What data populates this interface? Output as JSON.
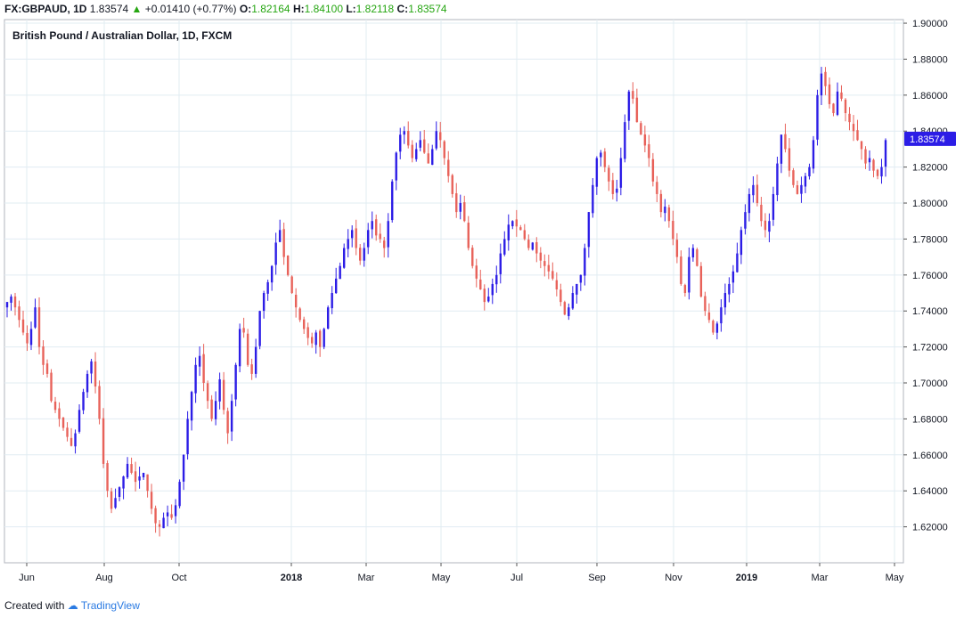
{
  "header": {
    "symbol": "FX:GBPAUD, 1D",
    "last": "1.83574",
    "arrow": "▲",
    "change": "+0.01410 (+0.77%)",
    "o_label": "O:",
    "o_value": "1.82164",
    "h_label": "H:",
    "h_value": "1.84100",
    "l_label": "L:",
    "l_value": "1.82118",
    "c_label": "C:",
    "c_value": "1.83574"
  },
  "footer": {
    "created_with": "Created with",
    "brand": "TradingView"
  },
  "colors": {
    "up": "#2c1de6",
    "down": "#e8625a",
    "grid": "#e1ecf2",
    "axis": "#555555",
    "price_tag": "#2c1de6"
  },
  "chart_data": {
    "type": "candlestick",
    "title": "British Pound / Australian Dollar, 1D, FXCM",
    "last_price_label": "1.83574",
    "y_ticks": [
      "1.90000",
      "1.88000",
      "1.86000",
      "1.84000",
      "1.82000",
      "1.80000",
      "1.78000",
      "1.76000",
      "1.74000",
      "1.72000",
      "1.70000",
      "1.68000",
      "1.66000",
      "1.64000",
      "1.62000"
    ],
    "ylim": [
      1.6,
      1.902
    ],
    "x_ticks": [
      "Jun",
      "Aug",
      "Oct",
      "2018",
      "Mar",
      "May",
      "Jul",
      "Sep",
      "Nov",
      "2019",
      "Mar",
      "May"
    ],
    "grid": true,
    "approx_closes": [
      1.745,
      1.748,
      1.742,
      1.735,
      1.728,
      1.722,
      1.73,
      1.742,
      1.72,
      1.71,
      1.705,
      1.69,
      1.685,
      1.68,
      1.675,
      1.67,
      1.665,
      1.672,
      1.685,
      1.695,
      1.705,
      1.712,
      1.698,
      1.68,
      1.655,
      1.64,
      1.63,
      1.636,
      1.642,
      1.648,
      1.655,
      1.65,
      1.645,
      1.648,
      1.65,
      1.64,
      1.63,
      1.622,
      1.62,
      1.625,
      1.628,
      1.625,
      1.632,
      1.645,
      1.66,
      1.68,
      1.695,
      1.71,
      1.715,
      1.7,
      1.69,
      1.68,
      1.69,
      1.702,
      1.685,
      1.672,
      1.69,
      1.71,
      1.73,
      1.728,
      1.71,
      1.705,
      1.72,
      1.74,
      1.75,
      1.756,
      1.765,
      1.778,
      1.785,
      1.77,
      1.76,
      1.75,
      1.742,
      1.735,
      1.73,
      1.725,
      1.722,
      1.728,
      1.72,
      1.73,
      1.742,
      1.75,
      1.758,
      1.765,
      1.775,
      1.78,
      1.785,
      1.775,
      1.768,
      1.775,
      1.785,
      1.79,
      1.782,
      1.78,
      1.775,
      1.79,
      1.812,
      1.828,
      1.838,
      1.84,
      1.832,
      1.825,
      1.83,
      1.835,
      1.828,
      1.822,
      1.83,
      1.84,
      1.835,
      1.825,
      1.815,
      1.805,
      1.795,
      1.8,
      1.79,
      1.775,
      1.765,
      1.758,
      1.752,
      1.745,
      1.748,
      1.755,
      1.76,
      1.772,
      1.78,
      1.788,
      1.79,
      1.787,
      1.785,
      1.78,
      1.775,
      1.778,
      1.772,
      1.768,
      1.765,
      1.762,
      1.758,
      1.752,
      1.745,
      1.738,
      1.742,
      1.75,
      1.755,
      1.76,
      1.775,
      1.795,
      1.81,
      1.825,
      1.828,
      1.82,
      1.812,
      1.805,
      1.808,
      1.825,
      1.845,
      1.862,
      1.858,
      1.845,
      1.838,
      1.832,
      1.825,
      1.812,
      1.805,
      1.795,
      1.798,
      1.79,
      1.78,
      1.77,
      1.755,
      1.75,
      1.77,
      1.775,
      1.765,
      1.748,
      1.74,
      1.735,
      1.728,
      1.733,
      1.742,
      1.75,
      1.755,
      1.762,
      1.772,
      1.785,
      1.795,
      1.805,
      1.81,
      1.8,
      1.79,
      1.785,
      1.79,
      1.805,
      1.822,
      1.838,
      1.83,
      1.818,
      1.81,
      1.805,
      1.81,
      1.815,
      1.82,
      1.835,
      1.86,
      1.872,
      1.865,
      1.855,
      1.85,
      1.862,
      1.858,
      1.85,
      1.845,
      1.84,
      1.835,
      1.83,
      1.822,
      1.825,
      1.818,
      1.815,
      1.82,
      1.835
    ]
  }
}
